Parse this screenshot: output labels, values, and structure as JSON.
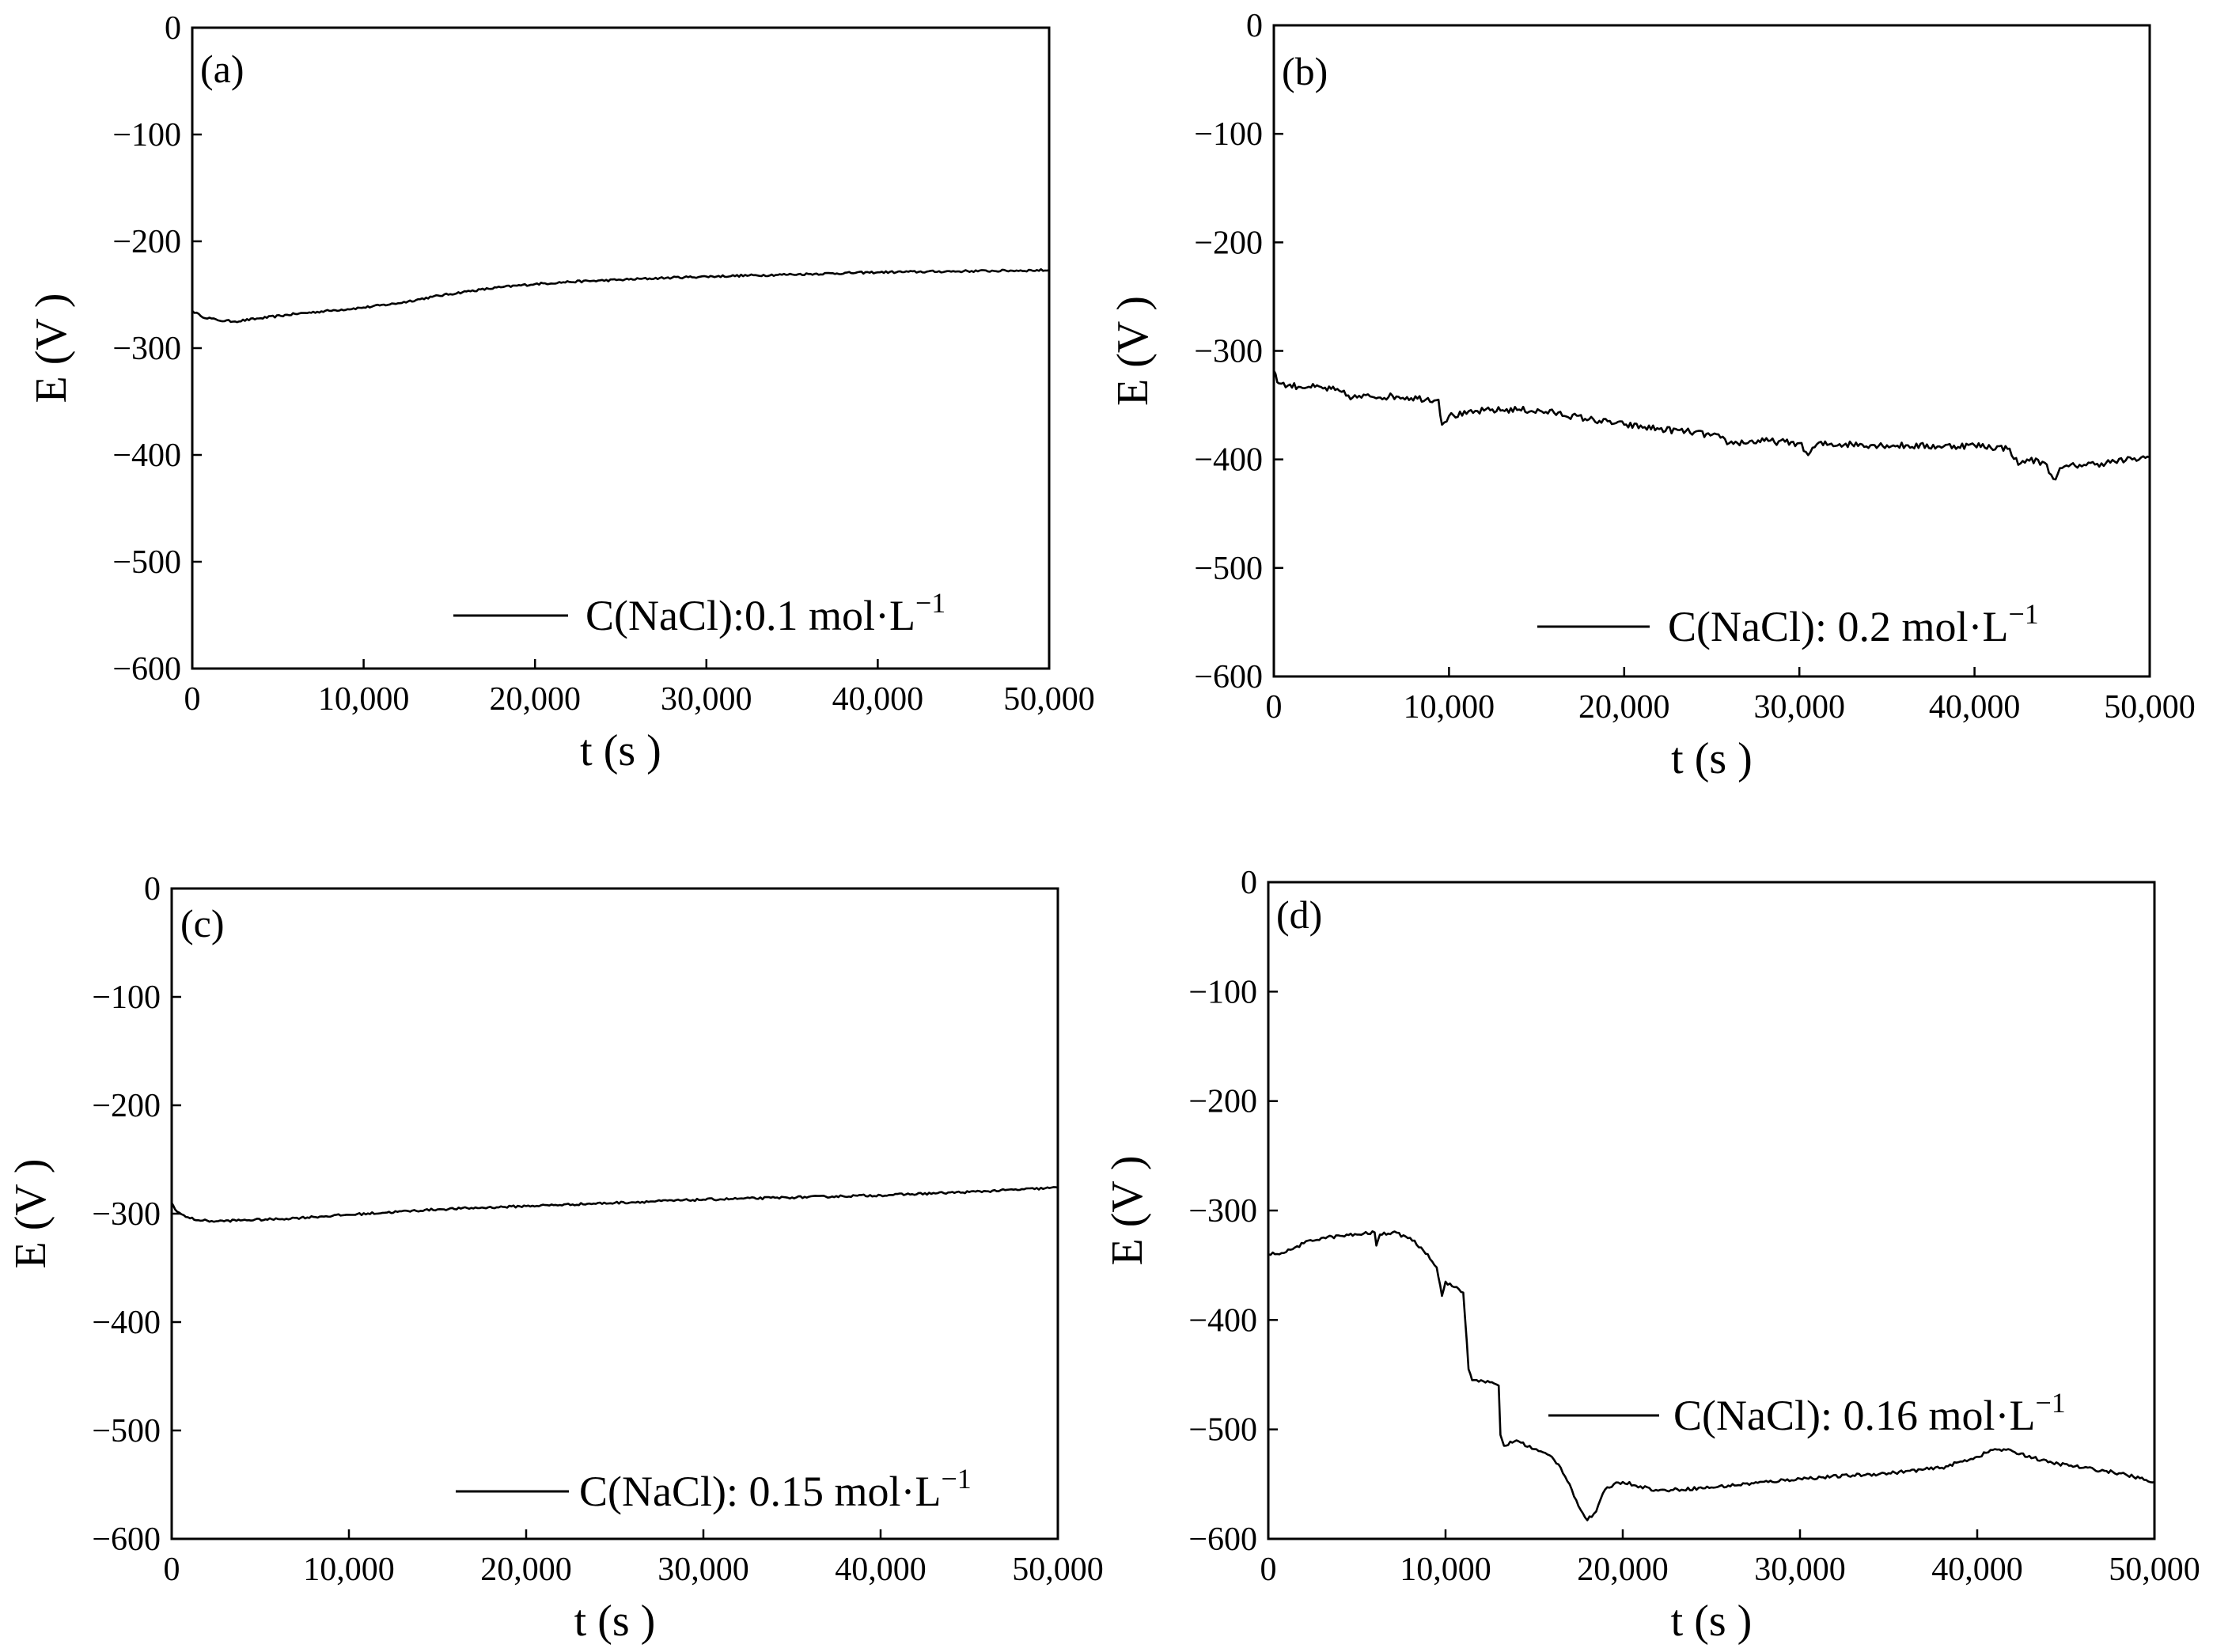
{
  "colors": {
    "line": "#000000",
    "background": "#ffffff"
  },
  "chart_data": [
    {
      "panel": "(a)",
      "type": "line",
      "xlabel": "t (s )",
      "ylabel": "E (V )",
      "xlim": [
        0,
        50000
      ],
      "ylim": [
        -600,
        0
      ],
      "xticks": [
        0,
        10000,
        20000,
        30000,
        40000,
        50000
      ],
      "xtick_labels": [
        "0",
        "10,000",
        "20,000",
        "30,000",
        "40,000",
        "50,000"
      ],
      "yticks": [
        0,
        -100,
        -200,
        -300,
        -400,
        -500,
        -600
      ],
      "ytick_labels": [
        "0",
        "−100",
        "−200",
        "−300",
        "−400",
        "−500",
        "−600"
      ],
      "legend": {
        "label": "C(NaCl):0.1 mol·L",
        "superscript": "−1",
        "position": "lower-right"
      },
      "series": [
        {
          "name": "C(NaCl):0.1 mol·L−1",
          "noise": 1,
          "x": [
            0,
            500,
            1500,
            2500,
            4000,
            6000,
            8000,
            10000,
            12000,
            14000,
            16000,
            18000,
            20000,
            22000,
            25000,
            28000,
            30000,
            35000,
            40000,
            45000,
            50000
          ],
          "y": [
            -265,
            -270,
            -274,
            -275,
            -272,
            -268,
            -265,
            -262,
            -258,
            -252,
            -247,
            -243,
            -240,
            -238,
            -236,
            -234,
            -233,
            -231,
            -229,
            -228,
            -227
          ]
        }
      ]
    },
    {
      "panel": "(b)",
      "type": "line",
      "xlabel": "t (s )",
      "ylabel": "E (V )",
      "xlim": [
        0,
        50000
      ],
      "ylim": [
        -600,
        0
      ],
      "xticks": [
        0,
        10000,
        20000,
        30000,
        40000,
        50000
      ],
      "xtick_labels": [
        "0",
        "10,000",
        "20,000",
        "30,000",
        "40,000",
        "50,000"
      ],
      "yticks": [
        0,
        -100,
        -200,
        -300,
        -400,
        -500,
        -600
      ],
      "ytick_labels": [
        "0",
        "−100",
        "−200",
        "−300",
        "−400",
        "−500",
        "−600"
      ],
      "legend": {
        "label": "C(NaCl): 0.2 mol·L",
        "superscript": "−1",
        "position": "lower-right"
      },
      "series": [
        {
          "name": "C(NaCl): 0.2 mol·L−1",
          "noise": 3,
          "x": [
            0,
            300,
            800,
            2000,
            3500,
            4500,
            5500,
            7000,
            9400,
            9600,
            10000,
            11000,
            12000,
            14000,
            16000,
            18000,
            20000,
            22000,
            24000,
            25500,
            26000,
            28000,
            30000,
            30500,
            31000,
            33000,
            35000,
            38000,
            40000,
            42000,
            42500,
            43000,
            44000,
            44500,
            45000,
            46000,
            47000,
            48000,
            49000,
            50000
          ],
          "y": [
            -318,
            -330,
            -332,
            -333,
            -336,
            -343,
            -342,
            -342,
            -345,
            -368,
            -360,
            -358,
            -355,
            -354,
            -357,
            -363,
            -368,
            -372,
            -375,
            -380,
            -385,
            -383,
            -385,
            -396,
            -386,
            -386,
            -387,
            -388,
            -387,
            -390,
            -405,
            -400,
            -403,
            -418,
            -408,
            -405,
            -404,
            -402,
            -400,
            -398
          ]
        }
      ]
    },
    {
      "panel": "(c)",
      "type": "line",
      "xlabel": "t (s )",
      "ylabel": "E (V )",
      "xlim": [
        0,
        50000
      ],
      "ylim": [
        -600,
        0
      ],
      "xticks": [
        0,
        10000,
        20000,
        30000,
        40000,
        50000
      ],
      "xtick_labels": [
        "0",
        "10,000",
        "20,000",
        "30,000",
        "40,000",
        "50,000"
      ],
      "yticks": [
        0,
        -100,
        -200,
        -300,
        -400,
        -500,
        -600
      ],
      "ytick_labels": [
        "0",
        "−100",
        "−200",
        "−300",
        "−400",
        "−500",
        "−600"
      ],
      "legend": {
        "label": "C(NaCl): 0.15 mol·L",
        "superscript": "−1",
        "position": "lower-right"
      },
      "series": [
        {
          "name": "C(NaCl): 0.15 mol·L−1",
          "noise": 1,
          "x": [
            0,
            300,
            800,
            1500,
            2500,
            4000,
            6000,
            8000,
            10000,
            15000,
            20000,
            25000,
            30000,
            35000,
            40000,
            45000,
            50000
          ],
          "y": [
            -290,
            -298,
            -303,
            -306,
            -307,
            -306,
            -305,
            -303,
            -301,
            -296,
            -293,
            -290,
            -287,
            -285,
            -283,
            -280,
            -276
          ]
        }
      ]
    },
    {
      "panel": "(d)",
      "type": "line",
      "xlabel": "t (s )",
      "ylabel": "E (V )",
      "xlim": [
        0,
        50000
      ],
      "ylim": [
        -600,
        0
      ],
      "xticks": [
        0,
        10000,
        20000,
        30000,
        40000,
        50000
      ],
      "xtick_labels": [
        "0",
        "10,000",
        "20,000",
        "30,000",
        "40,000",
        "50,000"
      ],
      "yticks": [
        0,
        -100,
        -200,
        -300,
        -400,
        -500,
        -600
      ],
      "ytick_labels": [
        "0",
        "−100",
        "−200",
        "−300",
        "−400",
        "−500",
        "−600"
      ],
      "legend": {
        "label": "C(NaCl): 0.16 mol·L",
        "superscript": "−1",
        "position": "center-right"
      },
      "series": [
        {
          "name": "C(NaCl): 0.16 mol·L−1",
          "noise": 1.5,
          "x": [
            0,
            1000,
            2000,
            3000,
            5000,
            6000,
            6100,
            6300,
            7000,
            8000,
            9000,
            9500,
            9800,
            10000,
            10500,
            11000,
            11200,
            11300,
            11500,
            12000,
            13000,
            13100,
            13300,
            14000,
            15000,
            16000,
            16500,
            17000,
            17500,
            18000,
            18500,
            19000,
            19500,
            20000,
            21000,
            22000,
            25000,
            30000,
            35000,
            38000,
            40000,
            41000,
            42000,
            44000,
            46000,
            48000,
            50000
          ],
          "y": [
            -340,
            -338,
            -330,
            -325,
            -322,
            -320,
            -332,
            -322,
            -320,
            -325,
            -340,
            -352,
            -378,
            -365,
            -370,
            -375,
            -420,
            -445,
            -455,
            -455,
            -460,
            -505,
            -515,
            -510,
            -518,
            -525,
            -535,
            -550,
            -570,
            -583,
            -575,
            -555,
            -550,
            -548,
            -552,
            -556,
            -553,
            -545,
            -540,
            -535,
            -525,
            -518,
            -520,
            -530,
            -535,
            -540,
            -548
          ]
        }
      ]
    }
  ]
}
